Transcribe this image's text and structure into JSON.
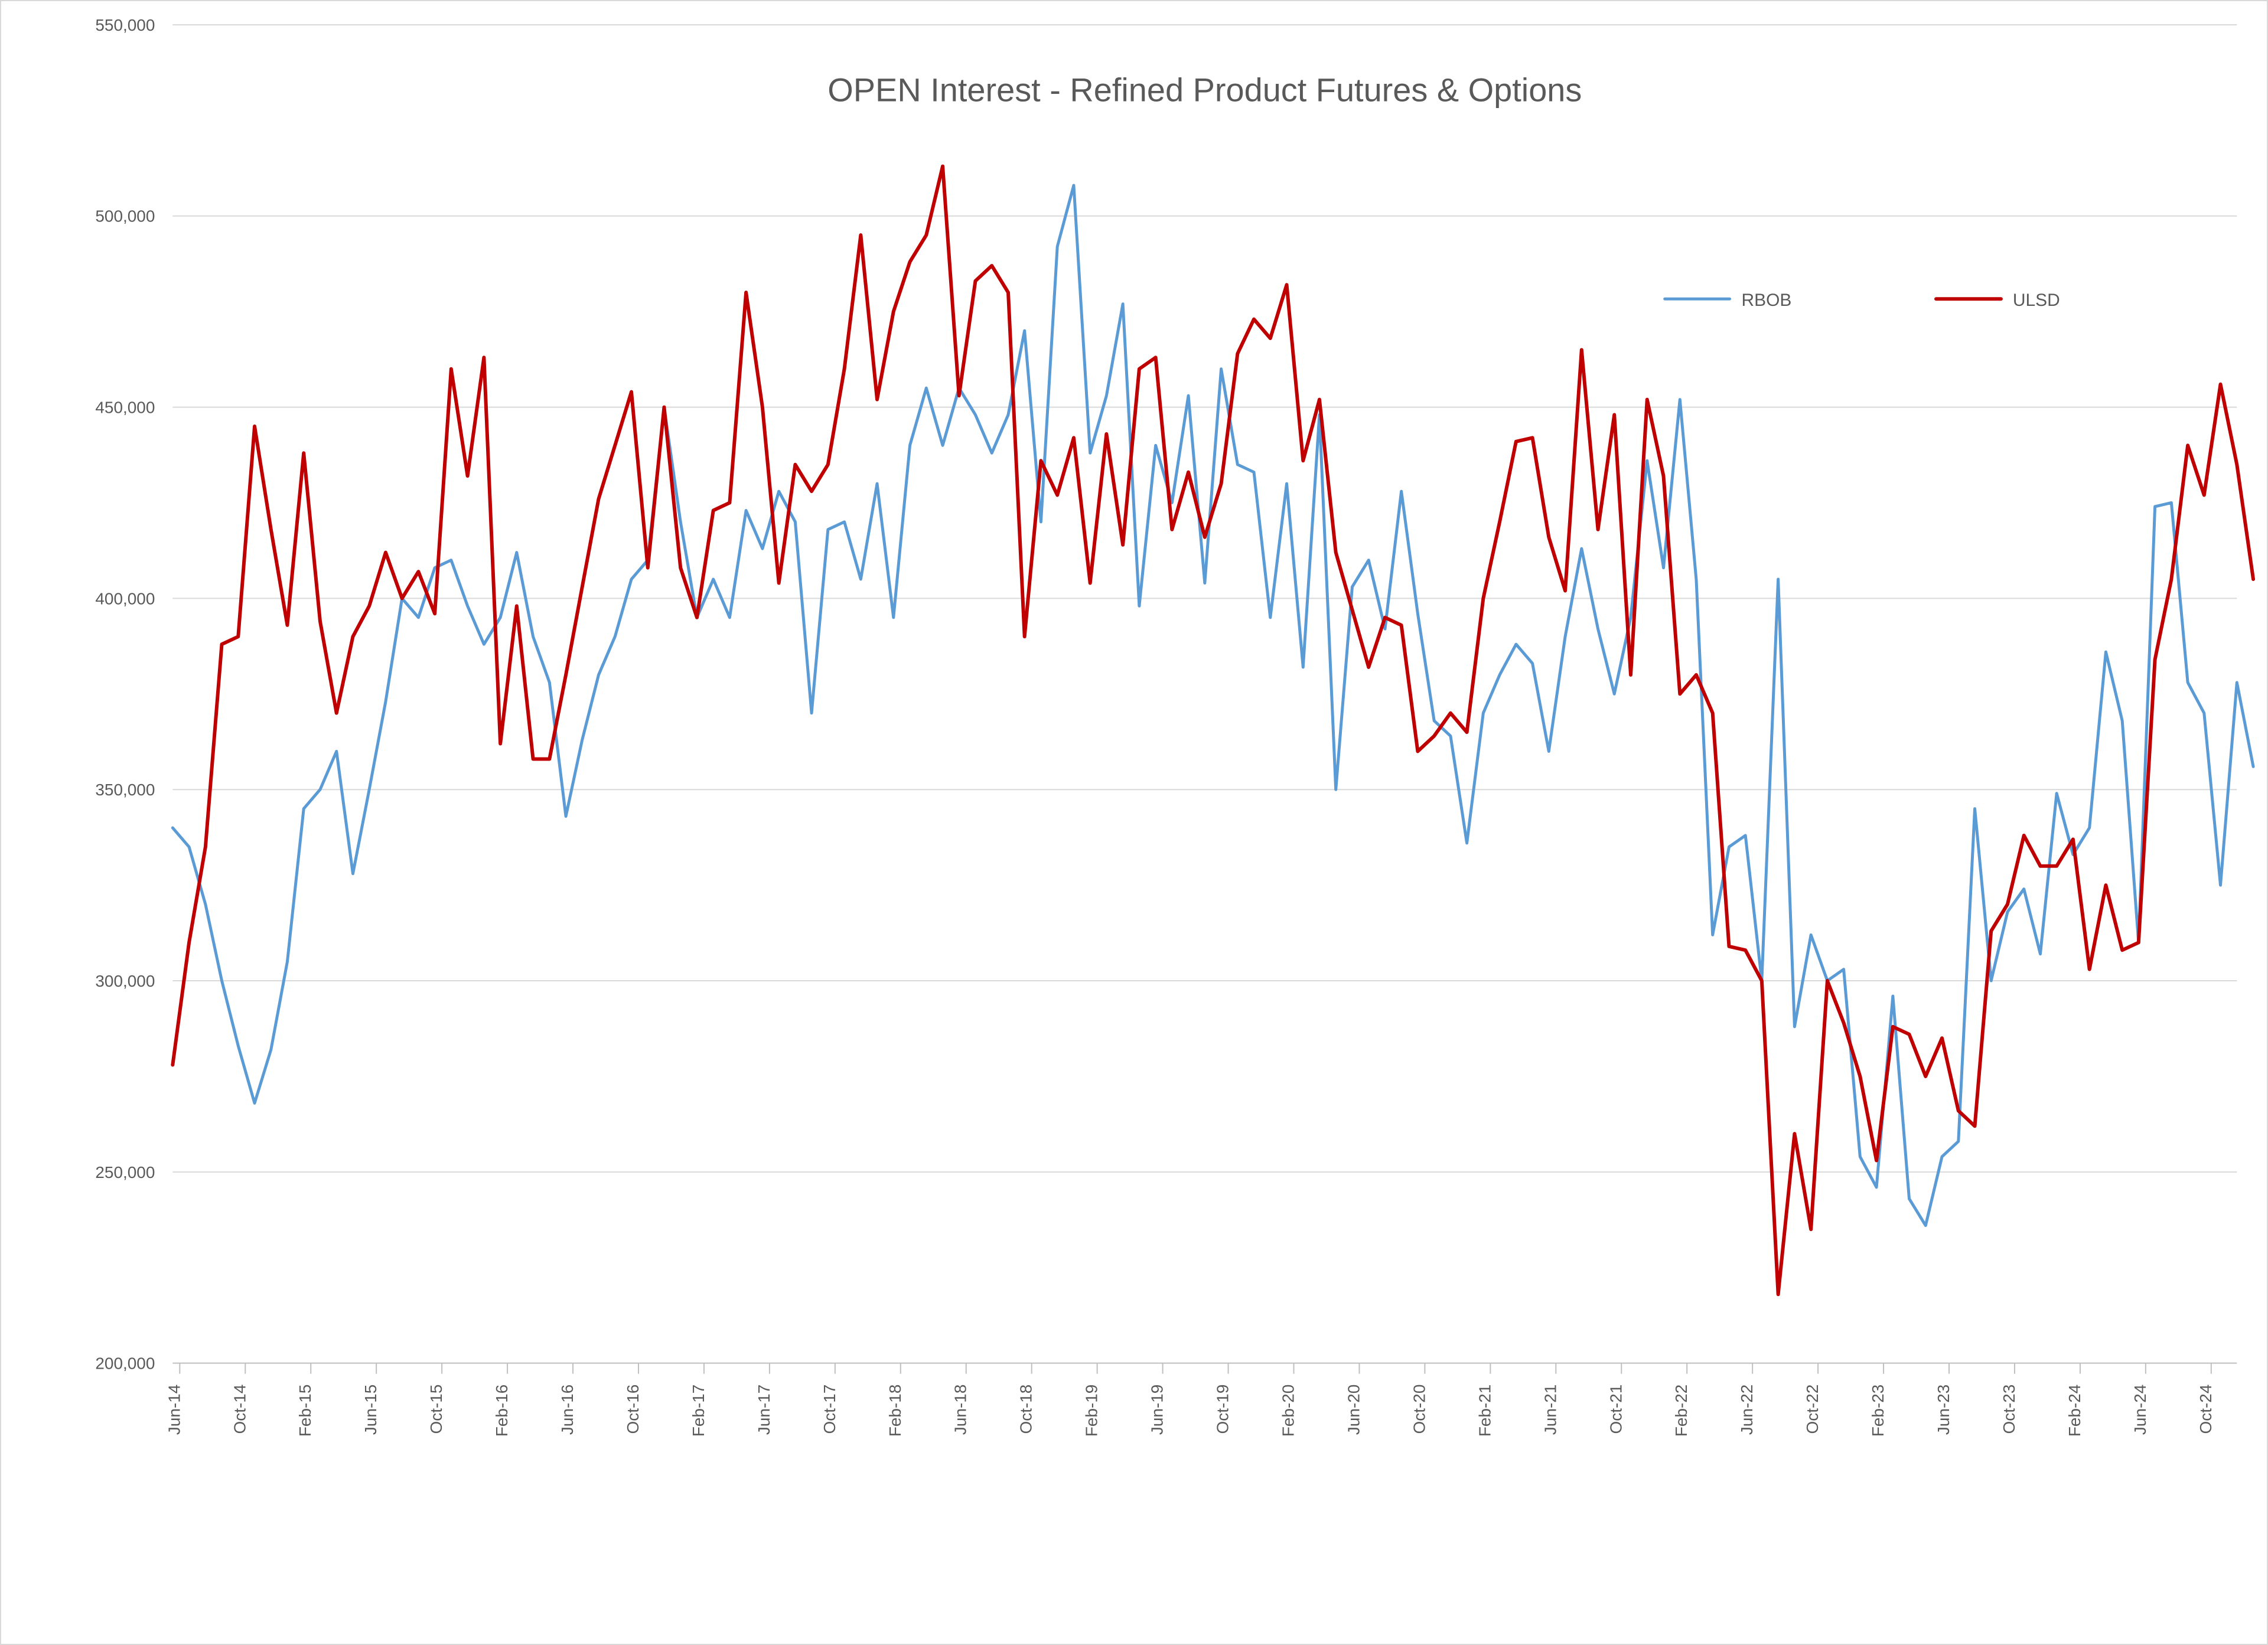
{
  "chart": {
    "type": "line",
    "title": "OPEN Interest - Refined Product Futures & Options",
    "title_fontsize": 56,
    "label_fontsize": 28,
    "legend_fontsize": 30,
    "font_family": "Segoe UI, Arial, sans-serif",
    "background_color": "#ffffff",
    "border_color": "#d9d9d9",
    "grid_color": "#d9d9d9",
    "axis_text_color": "#595959",
    "y_axis": {
      "min": 200000,
      "max": 550000,
      "tick_step": 50000,
      "tick_format": "comma",
      "labels": [
        "200,000",
        "250,000",
        "300,000",
        "350,000",
        "400,000",
        "450,000",
        "500,000",
        "550,000"
      ]
    },
    "x_axis": {
      "min": 0,
      "max": 126,
      "tick_labels": [
        "Jun-14",
        "Oct-14",
        "Feb-15",
        "Jun-15",
        "Oct-15",
        "Feb-16",
        "Jun-16",
        "Oct-16",
        "Feb-17",
        "Jun-17",
        "Oct-17",
        "Feb-18",
        "Jun-18",
        "Oct-18",
        "Feb-19",
        "Jun-19",
        "Oct-19",
        "Feb-20",
        "Jun-20",
        "Oct-20",
        "Feb-21",
        "Jun-21",
        "Oct-21",
        "Feb-22",
        "Jun-22",
        "Oct-22",
        "Feb-23",
        "Jun-23",
        "Oct-23",
        "Feb-24",
        "Jun-24",
        "Oct-24"
      ],
      "tick_step_months": 4,
      "label_rotation": -90
    },
    "legend": {
      "position": "top-right",
      "items": [
        {
          "label": "RBOB",
          "color": "#5b9bd5"
        },
        {
          "label": "ULSD",
          "color": "#c00000"
        }
      ]
    },
    "series": [
      {
        "name": "RBOB",
        "color": "#5b9bd5",
        "line_width": 5,
        "values": [
          340,
          335,
          320,
          300,
          283,
          268,
          282,
          305,
          345,
          350,
          360,
          328,
          350,
          373,
          400,
          395,
          408,
          410,
          398,
          388,
          395,
          412,
          390,
          378,
          343,
          363,
          380,
          390,
          405,
          410,
          450,
          420,
          395,
          405,
          395,
          423,
          413,
          428,
          420,
          370,
          418,
          420,
          405,
          430,
          395,
          440,
          455,
          440,
          455,
          448,
          438,
          448,
          470,
          420,
          492,
          508,
          438,
          453,
          477,
          398,
          440,
          425,
          453,
          404,
          460,
          435,
          433,
          395,
          430,
          382,
          448,
          350,
          403,
          410,
          392,
          428,
          396,
          368,
          364,
          336,
          370,
          380,
          388,
          383,
          360,
          390,
          413,
          392,
          375,
          395,
          436,
          408,
          452,
          405,
          312,
          335,
          338,
          300,
          405,
          288,
          312,
          300,
          303,
          254,
          246,
          296,
          243,
          236,
          254,
          258,
          345,
          300,
          318,
          324,
          307,
          349,
          333,
          340,
          386,
          368,
          310,
          424,
          425,
          378,
          370,
          325,
          378,
          356
        ]
      },
      {
        "name": "ULSD",
        "color": "#c00000",
        "line_width": 6,
        "values": [
          278,
          310,
          335,
          388,
          390,
          445,
          418,
          393,
          438,
          394,
          370,
          390,
          398,
          412,
          400,
          407,
          396,
          460,
          432,
          463,
          362,
          398,
          358,
          358,
          380,
          403,
          426,
          440,
          454,
          408,
          450,
          408,
          395,
          423,
          425,
          480,
          450,
          404,
          435,
          428,
          435,
          460,
          495,
          452,
          475,
          488,
          495,
          513,
          453,
          483,
          487,
          480,
          390,
          436,
          427,
          442,
          404,
          443,
          414,
          460,
          463,
          418,
          433,
          416,
          430,
          464,
          473,
          468,
          482,
          436,
          452,
          412,
          397,
          382,
          395,
          393,
          360,
          364,
          370,
          365,
          400,
          420,
          441,
          442,
          416,
          402,
          465,
          418,
          448,
          380,
          452,
          432,
          375,
          380,
          370,
          309,
          308,
          300,
          218,
          260,
          235,
          300,
          289,
          275,
          253,
          288,
          286,
          275,
          285,
          266,
          262,
          313,
          320,
          338,
          330,
          330,
          337,
          303,
          325,
          308,
          310,
          384,
          405,
          440,
          427,
          456,
          435,
          405
        ]
      }
    ]
  }
}
